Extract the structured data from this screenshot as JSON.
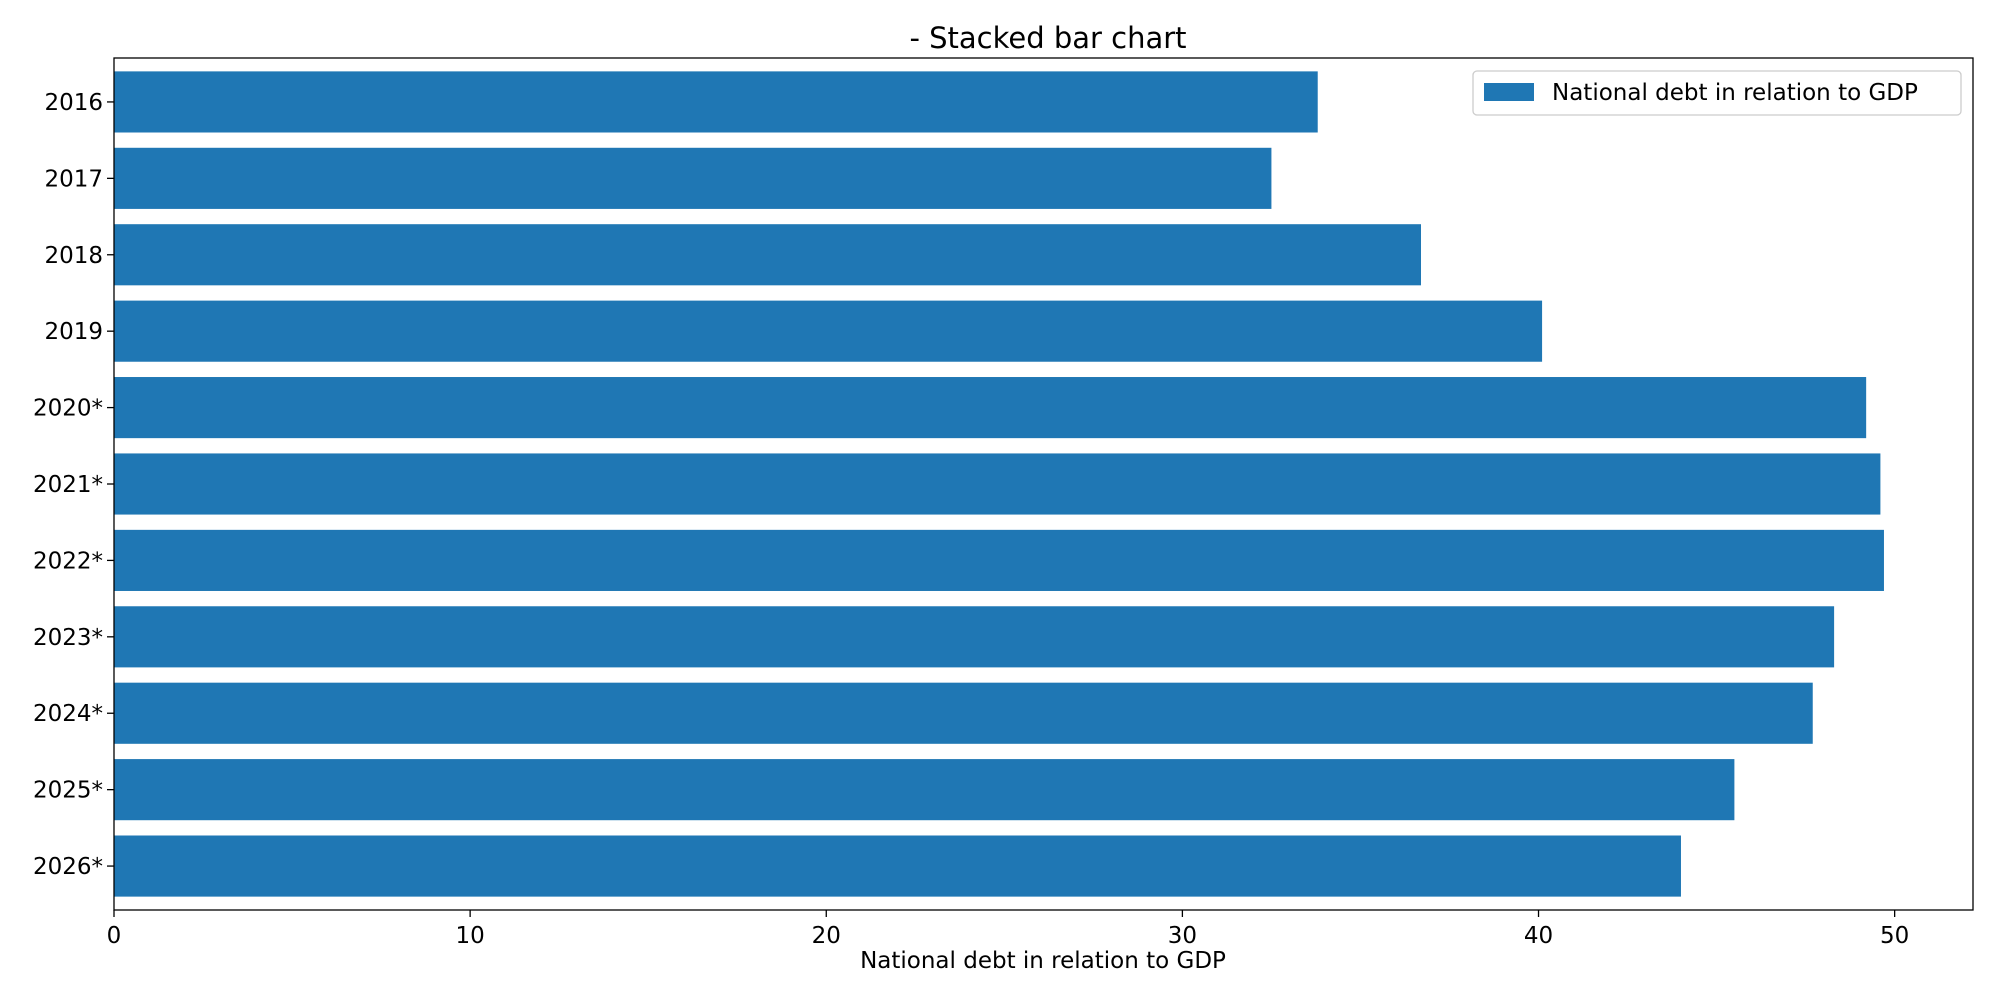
{
  "chart_data": {
    "type": "bar",
    "orientation": "horizontal",
    "title": "- Stacked bar chart",
    "xlabel": "National debt in relation to GDP",
    "ylabel": "",
    "categories": [
      "2016",
      "2017",
      "2018",
      "2019",
      "2020*",
      "2021*",
      "2022*",
      "2023*",
      "2024*",
      "2025*",
      "2026*"
    ],
    "series": [
      {
        "name": "National debt in relation to GDP",
        "color": "#1f77b4",
        "values": [
          33.8,
          32.5,
          36.7,
          40.1,
          49.2,
          49.6,
          49.7,
          48.3,
          47.7,
          45.5,
          44.0
        ]
      }
    ],
    "xlim": [
      0,
      52.2
    ],
    "xticks": [
      0,
      10,
      20,
      30,
      40,
      50
    ],
    "grid": false,
    "legend_position": "top-right"
  }
}
